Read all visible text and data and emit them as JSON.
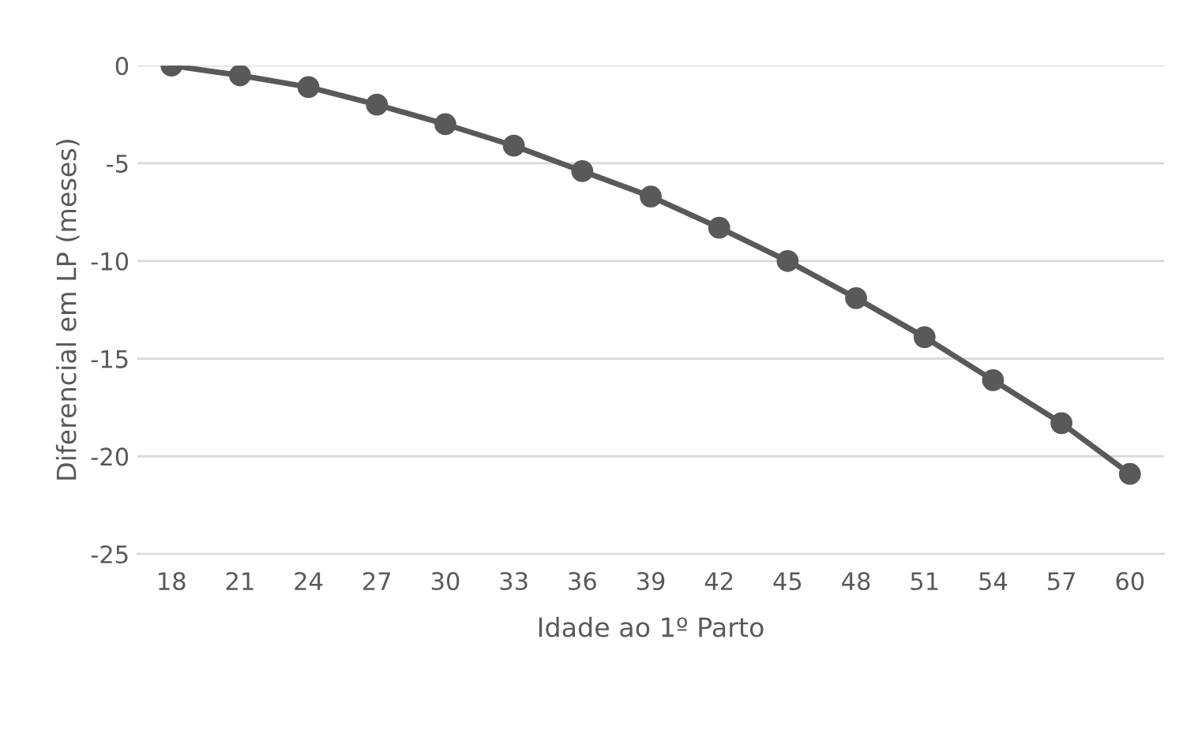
{
  "chart_data": {
    "type": "line",
    "xlabel": "Idade ao 1º Parto",
    "ylabel": "Diferencial em LP (meses)",
    "categories": [
      "18",
      "21",
      "24",
      "27",
      "30",
      "33",
      "36",
      "39",
      "42",
      "45",
      "48",
      "51",
      "54",
      "57",
      "60"
    ],
    "series": [
      {
        "color": "#595959",
        "values": [
          0,
          -0.5,
          -1.1,
          -2.0,
          -3.0,
          -4.1,
          -5.4,
          -6.7,
          -8.3,
          -10.0,
          -11.9,
          -13.9,
          -16.1,
          -18.3,
          -20.9
        ]
      }
    ],
    "ylim": [
      -25,
      0
    ],
    "yticks": [
      -25,
      -20,
      -15,
      -10,
      -5,
      0
    ],
    "grid": "y",
    "marker": "circle",
    "line_style": "solid"
  }
}
